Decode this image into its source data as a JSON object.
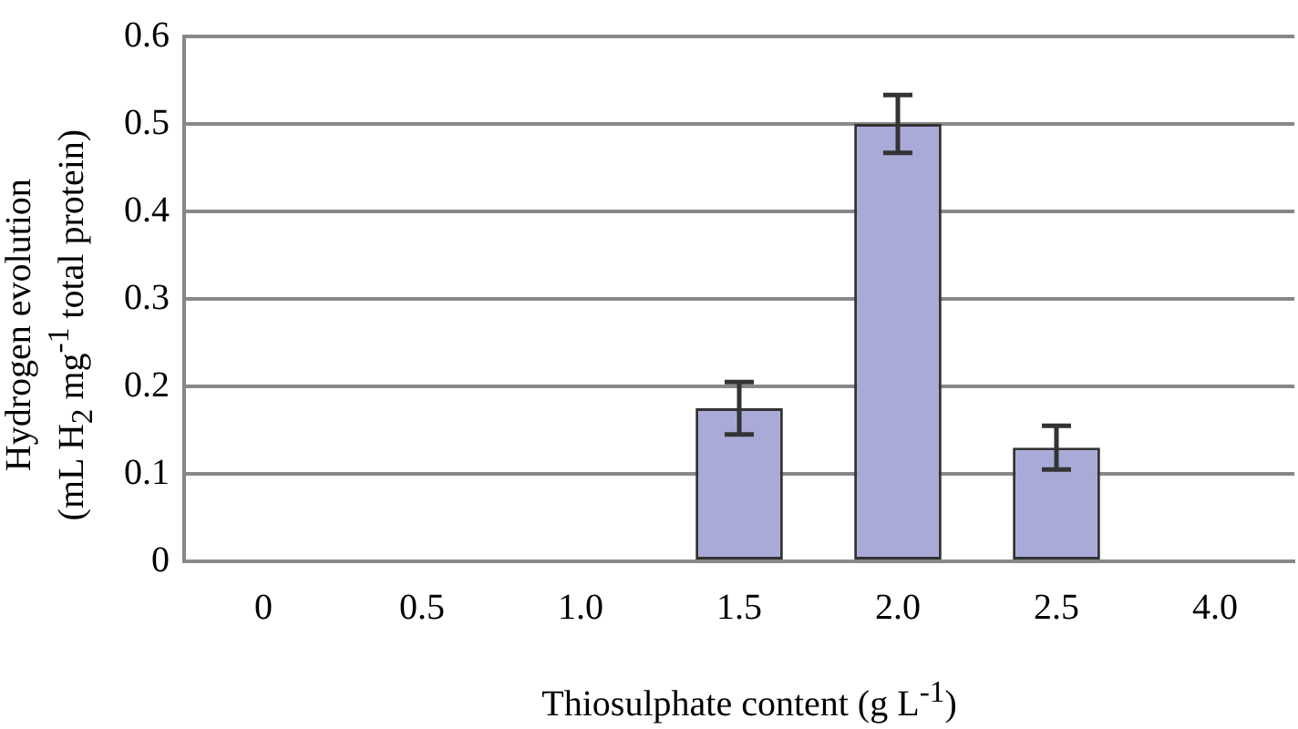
{
  "chart_data": {
    "type": "bar",
    "xlabel": "Thiosulphate content (g L$^{-1}$)",
    "ylabel": "Hydrogen evolution\n(mL H$_{2}$ mg$^{-1}$ total protein)",
    "categories": [
      "0",
      "0.5",
      "1.0",
      "1.5",
      "2.0",
      "2.5",
      "4.0"
    ],
    "values": [
      0,
      0,
      0,
      0.175,
      0.5,
      0.13,
      null
    ],
    "errors": [
      null,
      null,
      null,
      0.03,
      0.033,
      0.025,
      null
    ],
    "color": "#a9aad8",
    "ylim": [
      0,
      0.6
    ],
    "yticks": [
      0,
      0.1,
      0.2,
      0.3,
      0.4,
      0.5,
      0.6
    ],
    "grid": "y"
  }
}
